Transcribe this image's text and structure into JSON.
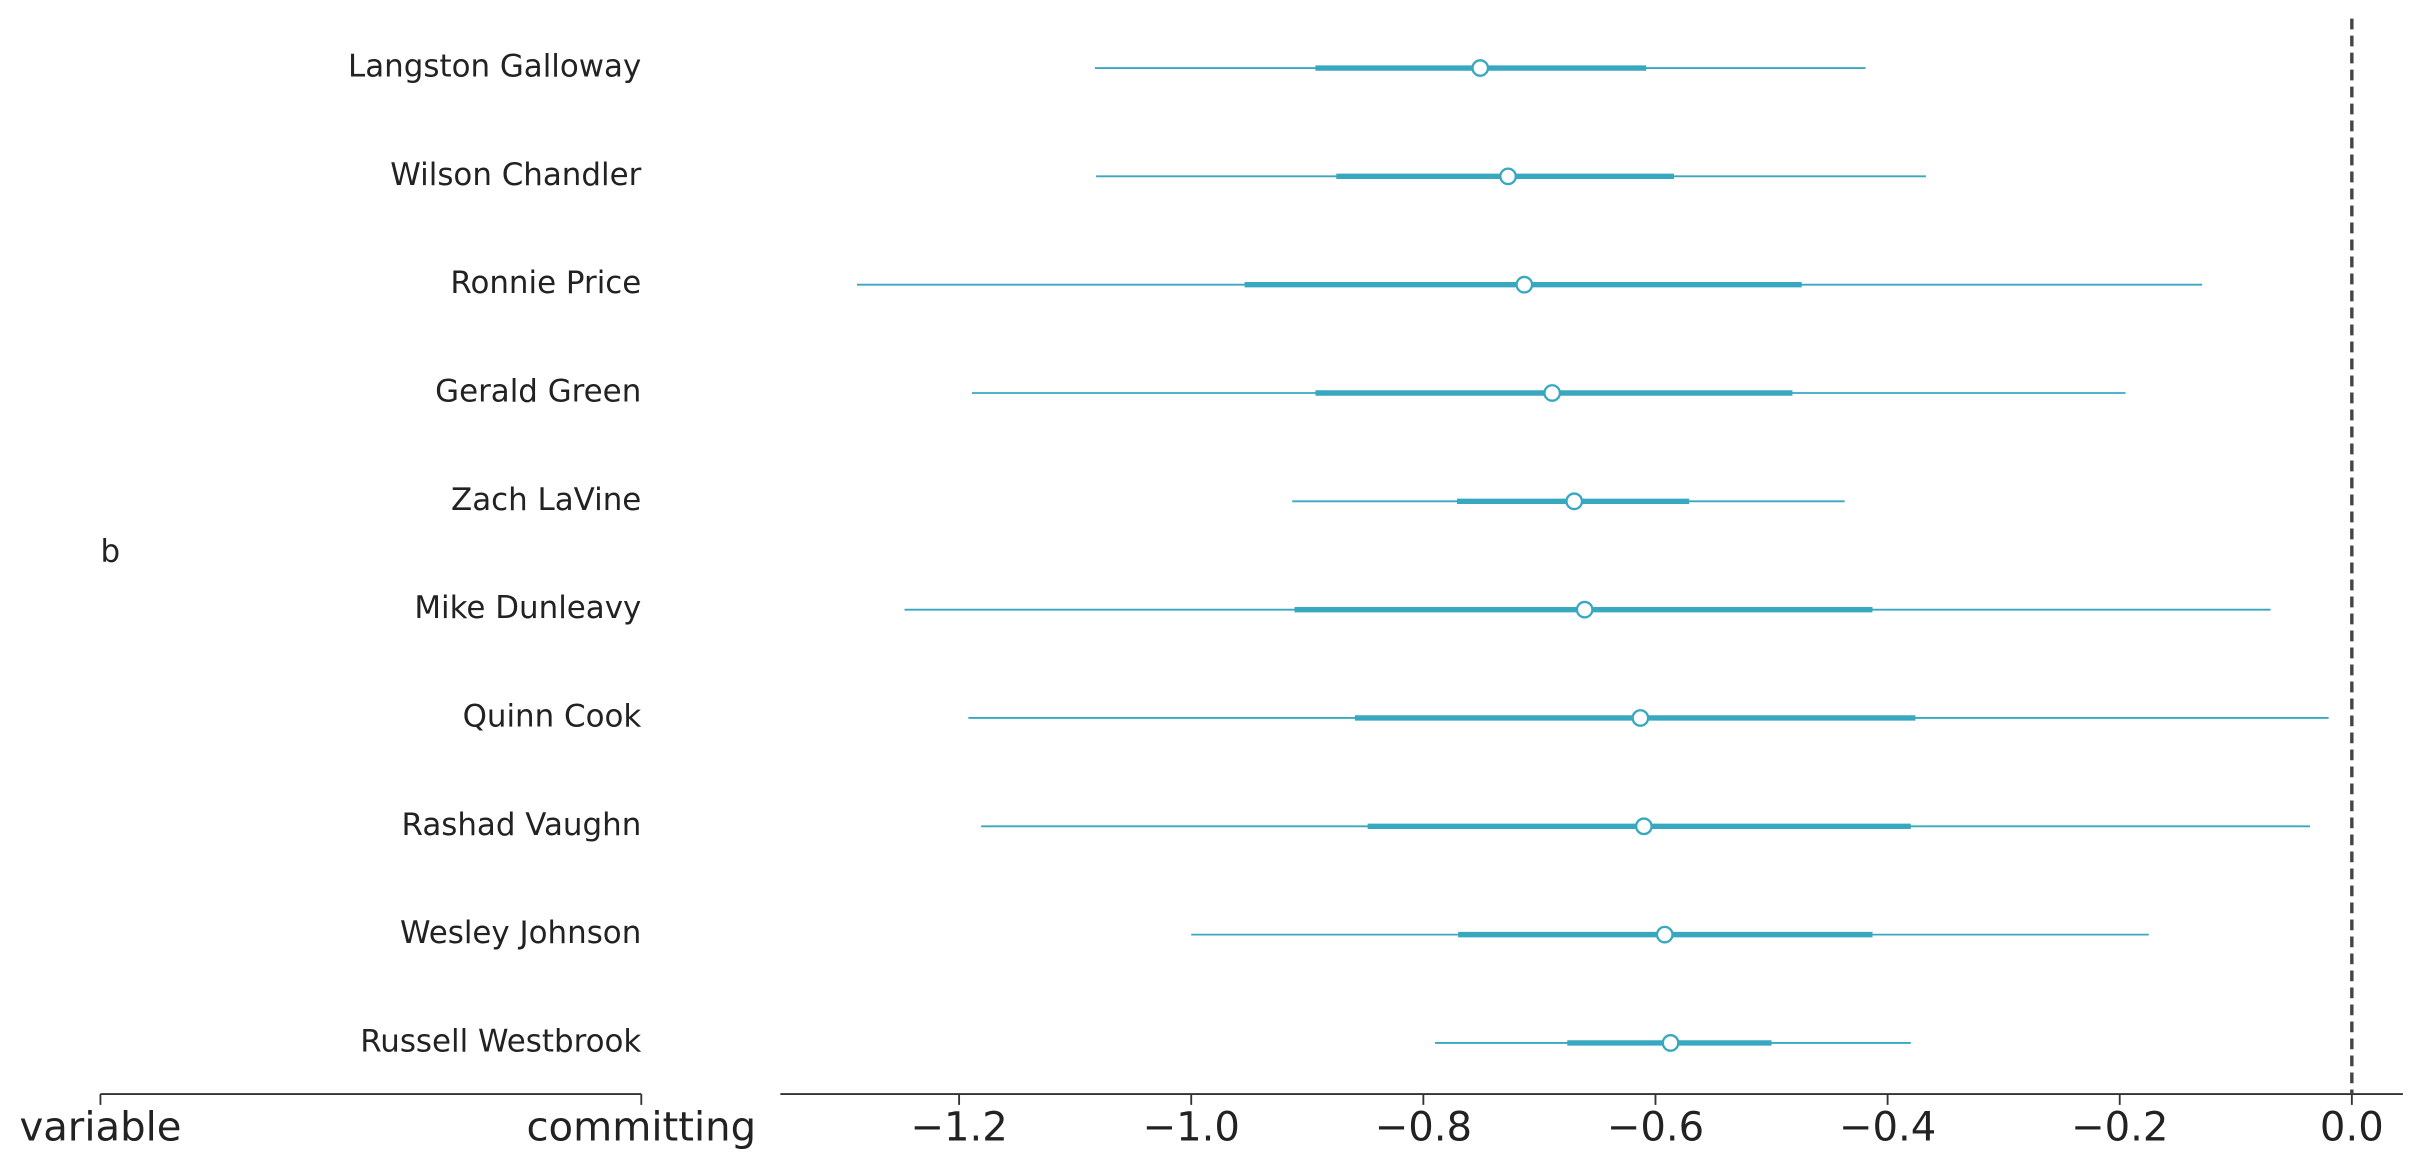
{
  "chart_data": {
    "type": "forest",
    "group_label": "b",
    "left_axis_labels": [
      "variable",
      "committing"
    ],
    "categories": [
      "Langston Galloway",
      "Wilson Chandler",
      "Ronnie Price",
      "Gerald Green",
      "Zach LaVine",
      "Mike Dunleavy",
      "Quinn Cook",
      "Rashad Vaughn",
      "Wesley Johnson",
      "Russell Westbrook"
    ],
    "values": [
      -0.751,
      -0.727,
      -0.713,
      -0.689,
      -0.67,
      -0.661,
      -0.613,
      -0.61,
      -0.592,
      -0.587
    ],
    "hdi": [
      [
        -1.083,
        -0.419
      ],
      [
        -1.082,
        -0.367
      ],
      [
        -1.288,
        -0.129
      ],
      [
        -1.189,
        -0.195
      ],
      [
        -0.913,
        -0.437
      ],
      [
        -1.247,
        -0.07
      ],
      [
        -1.192,
        -0.02
      ],
      [
        -1.181,
        -0.036
      ],
      [
        -1.0,
        -0.175
      ],
      [
        -0.79,
        -0.38
      ]
    ],
    "iqr": [
      [
        -0.893,
        -0.608
      ],
      [
        -0.875,
        -0.584
      ],
      [
        -0.954,
        -0.474
      ],
      [
        -0.893,
        -0.482
      ],
      [
        -0.771,
        -0.571
      ],
      [
        -0.911,
        -0.413
      ],
      [
        -0.859,
        -0.376
      ],
      [
        -0.848,
        -0.38
      ],
      [
        -0.77,
        -0.413
      ],
      [
        -0.676,
        -0.5
      ]
    ],
    "color": "#38a8c0",
    "ref_line": 0,
    "xlim": [
      -1.354,
      0.044
    ],
    "xticks": [
      {
        "value": -1.2,
        "label": "−1.2"
      },
      {
        "value": -1.0,
        "label": "−1.0"
      },
      {
        "value": -0.8,
        "label": "−0.8"
      },
      {
        "value": -0.6,
        "label": "−0.6"
      },
      {
        "value": -0.4,
        "label": "−0.4"
      },
      {
        "value": -0.2,
        "label": "−0.2"
      },
      {
        "value": 0.0,
        "label": "0.0"
      }
    ]
  }
}
